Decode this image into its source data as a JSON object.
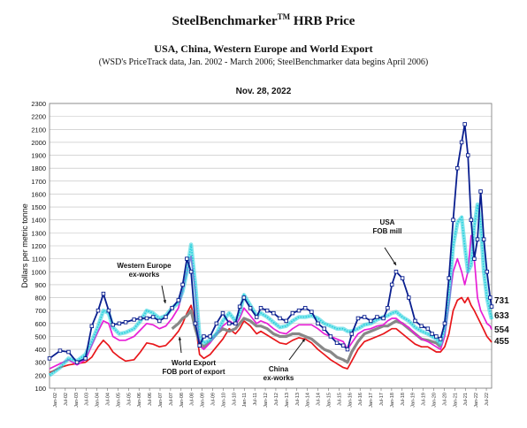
{
  "header": {
    "title_main": "SteelBenchmarker",
    "title_tm": "TM",
    "title_tail": " HRB Price",
    "subtitle": "USA, China, Western Europe and World Export",
    "note": "(WSD's PriceTrack data, Jan. 2002 - March 2006; SteelBenchmarker data begins April 2006)",
    "date": "Nov. 28, 2022"
  },
  "chart_data": {
    "type": "line",
    "ylabel": "Dollars per metric tonne",
    "ylim": [
      100,
      2300
    ],
    "yticks": [
      100,
      200,
      300,
      400,
      500,
      600,
      700,
      800,
      900,
      1000,
      1100,
      1200,
      1300,
      1400,
      1500,
      1600,
      1700,
      1800,
      1900,
      2000,
      2100,
      2200,
      2300
    ],
    "xlim": [
      2002.0,
      2022.92
    ],
    "x_tick_labels": [
      "Jan-02",
      "Jul-02",
      "Jan-03",
      "Jul-03",
      "Jan-04",
      "Jul-04",
      "Jan-05",
      "Jul-05",
      "Jan-06",
      "Jul-06",
      "Jan-07",
      "Jul-07",
      "Jan-08",
      "Jul-08",
      "Jan-09",
      "Jul-09",
      "Jan-10",
      "Jul-10",
      "Jan-11",
      "Jul-11",
      "Jan-12",
      "Jul-12",
      "Jan-13",
      "Jul-13",
      "Jan-14",
      "Jul-14",
      "Jan-15",
      "Jul-15",
      "Jan-16",
      "Jul-16",
      "Jan-17",
      "Jul-17",
      "Jan-18",
      "Jul-18",
      "Jan-19",
      "Jul-19",
      "Jan-20",
      "Jul-20",
      "Jan-21",
      "Jul-21",
      "Jan-22",
      "Jul-22"
    ],
    "grid": true,
    "series": [
      {
        "name": "USA FOB mill",
        "color": "#0a1f8f",
        "marker": "square",
        "x": [
          2002.0,
          2002.5,
          2002.9,
          2003.3,
          2003.7,
          2004.0,
          2004.3,
          2004.55,
          2004.8,
          2005.0,
          2005.3,
          2005.6,
          2006.0,
          2006.3,
          2006.6,
          2006.9,
          2007.2,
          2007.5,
          2007.8,
          2008.1,
          2008.3,
          2008.5,
          2008.7,
          2008.9,
          2009.1,
          2009.3,
          2009.6,
          2009.9,
          2010.2,
          2010.5,
          2010.8,
          2011.0,
          2011.2,
          2011.5,
          2011.8,
          2012.0,
          2012.3,
          2012.6,
          2012.9,
          2013.2,
          2013.5,
          2013.8,
          2014.1,
          2014.4,
          2014.7,
          2015.0,
          2015.3,
          2015.6,
          2015.9,
          2016.1,
          2016.3,
          2016.6,
          2016.9,
          2017.2,
          2017.5,
          2017.8,
          2018.0,
          2018.2,
          2018.4,
          2018.7,
          2019.0,
          2019.3,
          2019.6,
          2019.9,
          2020.1,
          2020.3,
          2020.5,
          2020.7,
          2020.9,
          2021.1,
          2021.3,
          2021.5,
          2021.65,
          2021.8,
          2021.95,
          2022.1,
          2022.25,
          2022.4,
          2022.55,
          2022.7,
          2022.85,
          2022.92
        ],
        "values": [
          330,
          390,
          380,
          300,
          330,
          580,
          700,
          830,
          700,
          590,
          600,
          610,
          630,
          640,
          640,
          650,
          620,
          650,
          720,
          780,
          900,
          1100,
          1000,
          600,
          430,
          500,
          500,
          600,
          680,
          600,
          600,
          730,
          800,
          720,
          650,
          720,
          700,
          680,
          640,
          620,
          680,
          700,
          720,
          690,
          600,
          560,
          500,
          450,
          430,
          400,
          520,
          640,
          650,
          620,
          650,
          640,
          720,
          900,
          1000,
          950,
          800,
          620,
          580,
          560,
          520,
          500,
          480,
          600,
          950,
          1400,
          1800,
          2000,
          2140,
          1900,
          1400,
          1100,
          1250,
          1620,
          1250,
          1000,
          800,
          731
        ]
      },
      {
        "name": "Western Europe ex-works",
        "color": "#22d0dd",
        "marker": "circle",
        "x": [
          2002.0,
          2002.5,
          2002.9,
          2003.3,
          2003.7,
          2004.0,
          2004.3,
          2004.55,
          2004.8,
          2005.0,
          2005.3,
          2005.6,
          2006.0,
          2006.3,
          2006.6,
          2006.9,
          2007.2,
          2007.5,
          2007.8,
          2008.1,
          2008.3,
          2008.5,
          2008.7,
          2008.9,
          2009.1,
          2009.3,
          2009.6,
          2009.9,
          2010.2,
          2010.5,
          2010.8,
          2011.0,
          2011.2,
          2011.5,
          2011.8,
          2012.0,
          2012.3,
          2012.6,
          2012.9,
          2013.2,
          2013.5,
          2013.8,
          2014.1,
          2014.4,
          2014.7,
          2015.0,
          2015.3,
          2015.6,
          2015.9,
          2016.1,
          2016.3,
          2016.6,
          2016.9,
          2017.2,
          2017.5,
          2017.8,
          2018.0,
          2018.2,
          2018.4,
          2018.7,
          2019.0,
          2019.3,
          2019.6,
          2019.9,
          2020.1,
          2020.3,
          2020.5,
          2020.7,
          2020.9,
          2021.1,
          2021.3,
          2021.5,
          2021.65,
          2021.8,
          2021.95,
          2022.1,
          2022.25,
          2022.4,
          2022.55,
          2022.7,
          2022.85,
          2022.92
        ],
        "values": [
          200,
          260,
          330,
          310,
          360,
          460,
          580,
          700,
          680,
          570,
          520,
          530,
          560,
          620,
          700,
          680,
          640,
          660,
          720,
          760,
          850,
          1000,
          1210,
          900,
          500,
          450,
          470,
          520,
          620,
          680,
          620,
          680,
          820,
          740,
          660,
          680,
          650,
          610,
          570,
          580,
          620,
          650,
          650,
          660,
          640,
          600,
          580,
          560,
          560,
          540,
          540,
          560,
          590,
          600,
          630,
          650,
          660,
          680,
          690,
          650,
          620,
          570,
          540,
          520,
          500,
          480,
          440,
          560,
          800,
          1200,
          1380,
          1420,
          1200,
          1000,
          1050,
          1350,
          1520,
          1380,
          1000,
          800,
          680,
          633
        ]
      },
      {
        "name": "World Export FOB port of export",
        "color": "#e81fd6",
        "marker": "none",
        "x": [
          2002.0,
          2002.5,
          2002.9,
          2003.3,
          2003.7,
          2004.0,
          2004.3,
          2004.55,
          2004.8,
          2005.0,
          2005.3,
          2005.6,
          2006.0,
          2006.3,
          2006.6,
          2006.9,
          2007.2,
          2007.5,
          2007.8,
          2008.1,
          2008.3,
          2008.5,
          2008.7,
          2008.9,
          2009.1,
          2009.3,
          2009.6,
          2009.9,
          2010.2,
          2010.5,
          2010.8,
          2011.0,
          2011.2,
          2011.5,
          2011.8,
          2012.0,
          2012.3,
          2012.6,
          2012.9,
          2013.2,
          2013.5,
          2013.8,
          2014.1,
          2014.4,
          2014.7,
          2015.0,
          2015.3,
          2015.6,
          2015.9,
          2016.1,
          2016.3,
          2016.6,
          2016.9,
          2017.2,
          2017.5,
          2017.8,
          2018.0,
          2018.2,
          2018.4,
          2018.7,
          2019.0,
          2019.3,
          2019.6,
          2019.9,
          2020.1,
          2020.3,
          2020.5,
          2020.7,
          2020.9,
          2021.1,
          2021.3,
          2021.5,
          2021.65,
          2021.8,
          2021.95,
          2022.1,
          2022.25,
          2022.4,
          2022.55,
          2022.7,
          2022.85,
          2022.92
        ],
        "values": [
          250,
          290,
          320,
          280,
          320,
          430,
          540,
          620,
          600,
          500,
          470,
          470,
          500,
          550,
          600,
          590,
          560,
          580,
          640,
          720,
          850,
          1000,
          1120,
          850,
          430,
          400,
          450,
          520,
          580,
          620,
          590,
          640,
          720,
          660,
          600,
          620,
          600,
          560,
          530,
          520,
          560,
          590,
          590,
          590,
          560,
          520,
          500,
          480,
          460,
          400,
          450,
          520,
          550,
          560,
          580,
          590,
          620,
          640,
          640,
          600,
          570,
          520,
          480,
          460,
          440,
          420,
          400,
          500,
          750,
          1000,
          1100,
          1000,
          900,
          1000,
          1280,
          1100,
          800,
          700,
          650,
          600,
          580,
          554
        ]
      },
      {
        "name": "China ex-works",
        "color": "#888888",
        "marker": "dot",
        "x": [
          2007.8,
          2008.1,
          2008.3,
          2008.5,
          2008.7,
          2008.9,
          2009.1,
          2009.3,
          2009.6,
          2009.9,
          2010.2,
          2010.5,
          2010.8,
          2011.0,
          2011.2,
          2011.5,
          2011.8,
          2012.0,
          2012.3,
          2012.6,
          2012.9,
          2013.2,
          2013.5,
          2013.8,
          2014.1,
          2014.4,
          2014.7,
          2015.0,
          2015.3,
          2015.6,
          2015.9,
          2016.1,
          2016.3,
          2016.6,
          2016.9,
          2017.2,
          2017.5,
          2017.8,
          2018.0,
          2018.2,
          2018.4,
          2018.7,
          2019.0,
          2019.3,
          2019.6,
          2019.9,
          2020.1,
          2020.3,
          2020.5
        ],
        "values": [
          560,
          600,
          640,
          660,
          700,
          560,
          450,
          420,
          460,
          520,
          560,
          540,
          560,
          600,
          640,
          620,
          580,
          580,
          560,
          520,
          500,
          500,
          520,
          520,
          500,
          480,
          440,
          400,
          380,
          340,
          320,
          300,
          380,
          460,
          520,
          540,
          560,
          580,
          580,
          600,
          620,
          600,
          560,
          520,
          480,
          470,
          460,
          450,
          420
        ]
      },
      {
        "name": "China ex-works (red)",
        "color": "#e8161a",
        "marker": "none",
        "x": [
          2002.0,
          2002.5,
          2002.9,
          2003.3,
          2003.7,
          2004.0,
          2004.3,
          2004.55,
          2004.8,
          2005.0,
          2005.3,
          2005.6,
          2006.0,
          2006.3,
          2006.6,
          2006.9,
          2007.2,
          2007.5,
          2007.8,
          2008.1,
          2008.3,
          2008.5,
          2008.7,
          2008.9,
          2009.1,
          2009.3,
          2009.6,
          2009.9,
          2010.2,
          2010.5,
          2010.8,
          2011.0,
          2011.2,
          2011.5,
          2011.8,
          2012.0,
          2012.3,
          2012.6,
          2012.9,
          2013.2,
          2013.5,
          2013.8,
          2014.1,
          2014.4,
          2014.7,
          2015.0,
          2015.3,
          2015.6,
          2015.9,
          2016.1,
          2016.3,
          2016.6,
          2016.9,
          2017.2,
          2017.5,
          2017.8,
          2018.0,
          2018.2,
          2018.4,
          2018.7,
          2019.0,
          2019.3,
          2019.6,
          2019.9,
          2020.1,
          2020.3,
          2020.5,
          2020.7,
          2020.9,
          2021.1,
          2021.3,
          2021.5,
          2021.65,
          2021.8,
          2021.95,
          2022.1,
          2022.25,
          2022.4,
          2022.55,
          2022.7,
          2022.85,
          2022.92
        ],
        "values": [
          220,
          260,
          280,
          290,
          300,
          340,
          420,
          470,
          430,
          380,
          340,
          310,
          320,
          380,
          450,
          440,
          420,
          430,
          480,
          540,
          600,
          680,
          740,
          600,
          360,
          330,
          360,
          420,
          480,
          560,
          520,
          560,
          620,
          580,
          520,
          540,
          510,
          480,
          450,
          440,
          470,
          490,
          480,
          450,
          400,
          360,
          320,
          290,
          260,
          250,
          310,
          400,
          460,
          480,
          500,
          520,
          540,
          560,
          560,
          520,
          480,
          440,
          420,
          420,
          400,
          380,
          380,
          420,
          520,
          700,
          780,
          800,
          760,
          800,
          740,
          700,
          650,
          600,
          550,
          500,
          470,
          455
        ]
      }
    ],
    "annotations": [
      {
        "text": "Western Europe",
        "line2": "ex-works"
      },
      {
        "text": "World Export",
        "line2": "FOB port of export"
      },
      {
        "text": "China",
        "line2": "ex-works"
      },
      {
        "text": "USA",
        "line2": "FOB mill"
      }
    ],
    "end_labels": [
      {
        "text": "731",
        "value": 731
      },
      {
        "text": "633",
        "value": 633
      },
      {
        "text": "554",
        "value": 554
      },
      {
        "text": "455",
        "value": 455
      }
    ]
  }
}
